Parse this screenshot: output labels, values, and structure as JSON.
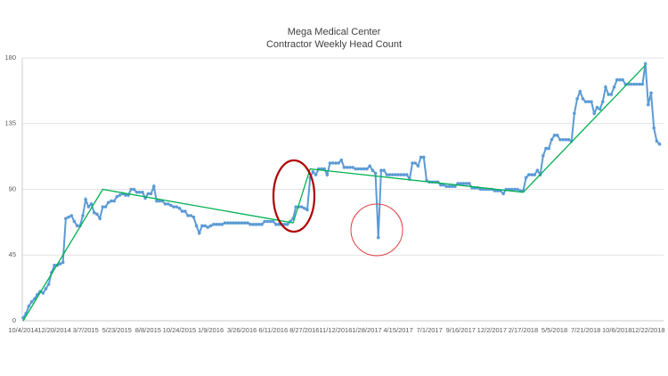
{
  "chart_data": {
    "type": "line",
    "title": "Mega Medical Center",
    "subtitle": "Contractor Weekly Head Count",
    "categories": [
      "10/4/2014",
      null,
      null,
      null,
      null,
      null,
      null,
      null,
      null,
      null,
      null,
      "12/20/2014",
      null,
      null,
      null,
      null,
      null,
      null,
      null,
      null,
      null,
      null,
      "3/7/2015",
      null,
      null,
      null,
      null,
      null,
      null,
      null,
      null,
      null,
      null,
      "5/23/2015",
      null,
      null,
      null,
      null,
      null,
      null,
      null,
      null,
      null,
      null,
      "8/8/2015",
      null,
      null,
      null,
      null,
      null,
      null,
      null,
      null,
      null,
      null,
      "10/24/2015",
      null,
      null,
      null,
      null,
      null,
      null,
      null,
      null,
      null,
      null,
      "1/9/2016",
      null,
      null,
      null,
      null,
      null,
      null,
      null,
      null,
      null,
      null,
      "3/26/2016",
      null,
      null,
      null,
      null,
      null,
      null,
      null,
      null,
      null,
      null,
      "6/11/2016",
      null,
      null,
      null,
      null,
      null,
      null,
      null,
      null,
      null,
      null,
      "8/27/2016",
      null,
      null,
      null,
      null,
      null,
      null,
      null,
      null,
      null,
      null,
      "11/12/2016",
      null,
      null,
      null,
      null,
      null,
      null,
      null,
      null,
      null,
      null,
      "1/28/2017",
      null,
      null,
      null,
      null,
      null,
      null,
      null,
      null,
      null,
      null,
      "4/15/2017",
      null,
      null,
      null,
      null,
      null,
      null,
      null,
      null,
      null,
      null,
      "7/1/2017",
      null,
      null,
      null,
      null,
      null,
      null,
      null,
      null,
      null,
      null,
      "9/16/2017",
      null,
      null,
      null,
      null,
      null,
      null,
      null,
      null,
      null,
      null,
      "12/2/2017",
      null,
      null,
      null,
      null,
      null,
      null,
      null,
      null,
      null,
      null,
      "2/17/2018",
      null,
      null,
      null,
      null,
      null,
      null,
      null,
      null,
      null,
      null,
      "5/5/2018",
      null,
      null,
      null,
      null,
      null,
      null,
      null,
      null,
      null,
      null,
      "7/21/2018",
      null,
      null,
      null,
      null,
      null,
      null,
      null,
      null,
      null,
      null,
      "10/6/2018",
      null,
      null,
      null,
      null,
      null,
      null,
      null,
      null,
      null,
      null,
      "12/22/2018",
      null,
      null,
      null,
      null
    ],
    "values": [
      2,
      5,
      10,
      13,
      15,
      18,
      20,
      19,
      22,
      25,
      33,
      38,
      38,
      39,
      40,
      70,
      71,
      72,
      68,
      65,
      65,
      72,
      83,
      78,
      80,
      74,
      73,
      70,
      78,
      78,
      81,
      82,
      82,
      85,
      86,
      87,
      86,
      86,
      90,
      90,
      88,
      88,
      88,
      84,
      87,
      87,
      92,
      82,
      82,
      82,
      80,
      80,
      79,
      78,
      78,
      77,
      75,
      75,
      72,
      72,
      71,
      65,
      60,
      65,
      65,
      64,
      65,
      66,
      66,
      66,
      66,
      67,
      67,
      67,
      67,
      67,
      67,
      67,
      67,
      67,
      66,
      66,
      66,
      66,
      66,
      68,
      68,
      68,
      68,
      66,
      66,
      66,
      66,
      66,
      68,
      70,
      78,
      78,
      78,
      77,
      76,
      98,
      102,
      100,
      104,
      104,
      104,
      100,
      108,
      108,
      108,
      108,
      110,
      105,
      105,
      105,
      105,
      104,
      104,
      104,
      104,
      104,
      106,
      103,
      101,
      57,
      103,
      103,
      100,
      100,
      100,
      100,
      100,
      100,
      100,
      100,
      97,
      108,
      108,
      106,
      112,
      112,
      96,
      95,
      95,
      95,
      95,
      93,
      93,
      92,
      92,
      92,
      92,
      94,
      94,
      94,
      94,
      94,
      91,
      91,
      91,
      90,
      90,
      90,
      90,
      90,
      89,
      89,
      89,
      87,
      90,
      90,
      90,
      90,
      90,
      89,
      89,
      98,
      100,
      100,
      100,
      103,
      100,
      113,
      118,
      118,
      124,
      127,
      127,
      124,
      124,
      124,
      124,
      123,
      142,
      152,
      157,
      152,
      150,
      150,
      150,
      142,
      146,
      145,
      150,
      160,
      155,
      155,
      160,
      165,
      165,
      165,
      162,
      162,
      162,
      162,
      162,
      162,
      162,
      176,
      148,
      156,
      132,
      123,
      121
    ],
    "color": "#5b9bd5",
    "trend": {
      "color": "#00b050",
      "x": [
        0,
        28,
        95,
        101,
        176,
        219
      ],
      "values": [
        0,
        90,
        67,
        104,
        88,
        175
      ]
    },
    "ylim": [
      0,
      180
    ],
    "yticks": [
      0,
      45,
      90,
      135,
      180
    ],
    "grid": true
  }
}
